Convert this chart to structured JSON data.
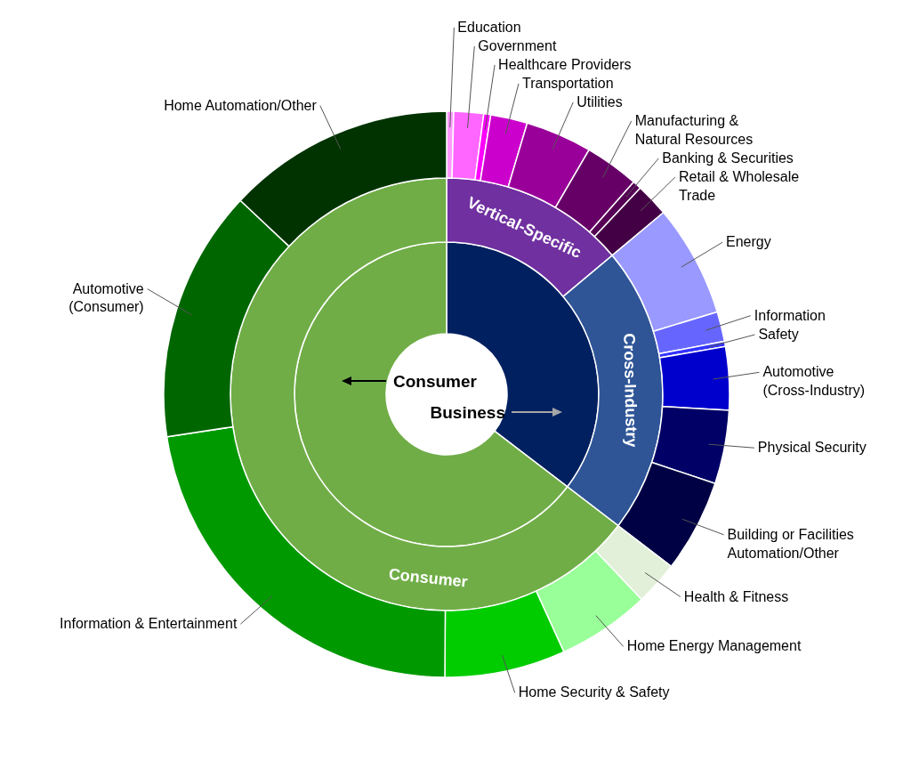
{
  "chart_data": [
    {
      "type": "donut",
      "categories": [
        "Business",
        "Consumer"
      ],
      "values": [
        35.4,
        64.6
      ],
      "colors": [
        "#002060",
        "#70ad47"
      ]
    },
    {
      "type": "donut",
      "categories": [
        "Vertical-Specific",
        "Cross-Industry",
        "Consumer"
      ],
      "values": [
        13.9,
        21.5,
        64.6
      ],
      "colors": [
        "#7030a0",
        "#2f5597",
        "#70ad47"
      ]
    },
    {
      "type": "donut",
      "categories": [
        "Education",
        "Government",
        "Healthcare Providers",
        "Transportation",
        "Utilities",
        "Manufacturing &\nNatural Resources",
        "Banking & Securities",
        "Retail & Wholesale\nTrade",
        "Energy",
        "Information",
        "Safety",
        "Automotive\n(Cross-Industry)",
        "Physical Security",
        "Building or Facilities\nAutomation/Other",
        "Health & Fitness",
        "Home Energy Management",
        "Home Security & Safety",
        "Information & Entertainment",
        "Automotive\n(Consumer)",
        "Home Automation/Other"
      ],
      "values": [
        0.4,
        1.7,
        0.4,
        2.1,
        3.8,
        3.1,
        0.5,
        1.9,
        6.4,
        1.7,
        0.3,
        3.6,
        4.2,
        5.3,
        2.5,
        5.3,
        6.9,
        22.5,
        14.4,
        13.0
      ],
      "colors": [
        "#ff99ff",
        "#ff66ff",
        "#ff00ff",
        "#cc00cc",
        "#990099",
        "#660066",
        "#550055",
        "#440044",
        "#9999ff",
        "#6666ff",
        "#3333ff",
        "#0000cc",
        "#000066",
        "#000044",
        "#e2f0d9",
        "#99ff99",
        "#00cc00",
        "#009900",
        "#006600",
        "#003300"
      ]
    }
  ]
}
